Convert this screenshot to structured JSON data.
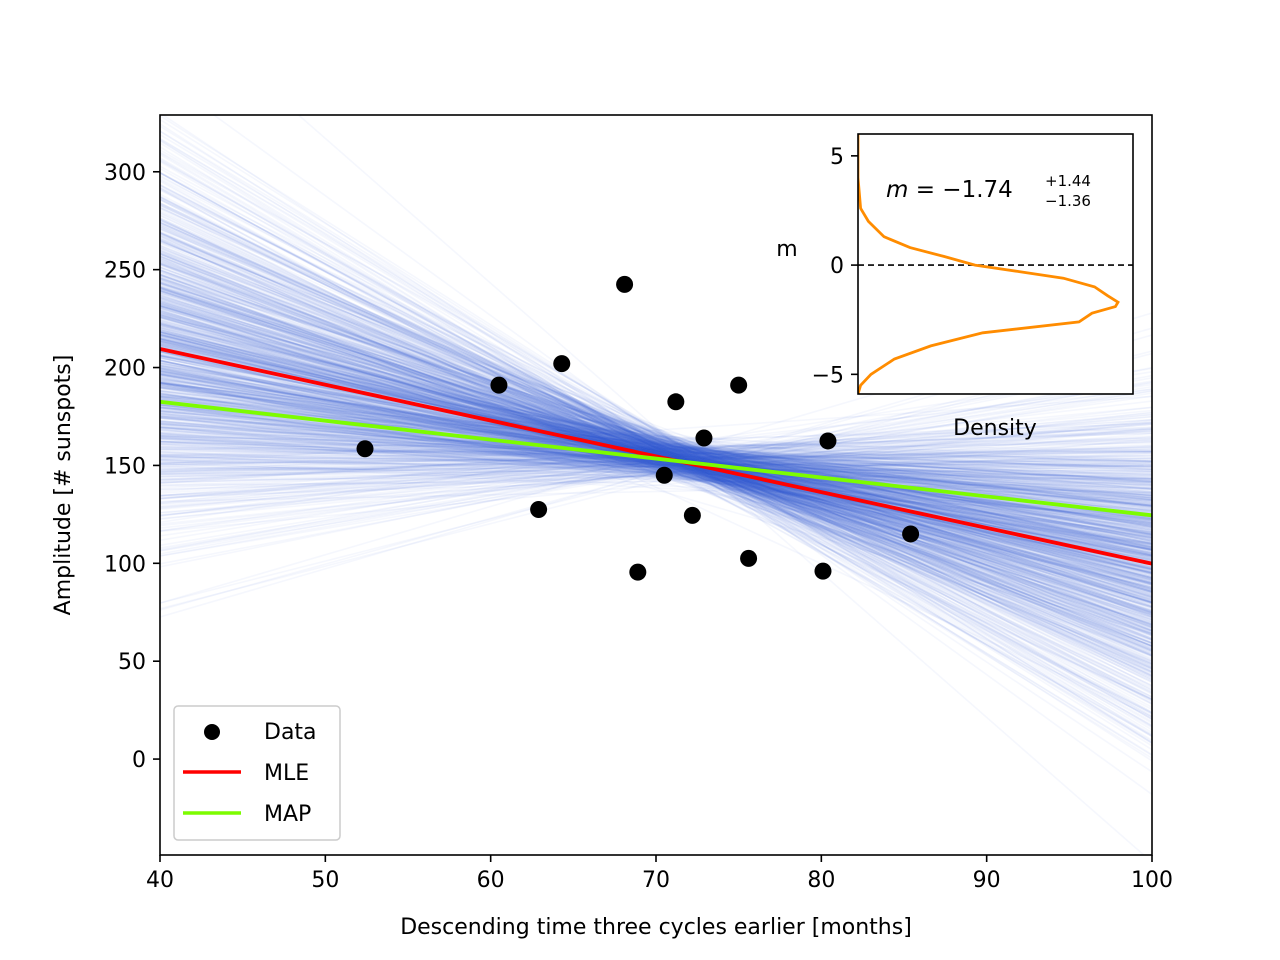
{
  "chart_data": [
    {
      "type": "scatter",
      "title": "",
      "xlabel": "Descending time three cycles earlier [months]",
      "ylabel": "Amplitude [# sunspots]",
      "xlim": [
        40,
        100
      ],
      "ylim": [
        -49,
        329
      ],
      "xticks": [
        40,
        50,
        60,
        70,
        80,
        90,
        100
      ],
      "xtick_labels": [
        "40",
        "50",
        "60",
        "70",
        "80",
        "90",
        "100"
      ],
      "yticks": [
        0,
        50,
        100,
        150,
        200,
        250,
        300
      ],
      "ytick_labels": [
        "0",
        "50",
        "100",
        "150",
        "200",
        "250",
        "300"
      ],
      "grid": false,
      "legend_position": "lower-left",
      "legend": [
        "Data",
        "MLE",
        "MAP"
      ],
      "series": [
        {
          "name": "Data",
          "kind": "scatter",
          "color": "#000000",
          "x": [
            52.4,
            60.5,
            62.9,
            64.3,
            68.1,
            68.9,
            70.5,
            71.2,
            72.2,
            72.9,
            75.0,
            75.6,
            80.1,
            80.4,
            85.4
          ],
          "y": [
            158.5,
            191.0,
            127.5,
            202.0,
            242.5,
            95.5,
            145.0,
            182.5,
            124.5,
            164.0,
            191.0,
            102.5,
            96.0,
            162.5,
            115.0
          ]
        },
        {
          "name": "MLE",
          "kind": "line",
          "color": "#ff0000",
          "x": [
            40,
            100
          ],
          "y": [
            209.5,
            99.8
          ]
        },
        {
          "name": "MAP",
          "kind": "line",
          "color": "#7cfc00",
          "x": [
            40,
            100
          ],
          "y": [
            182.5,
            124.5
          ]
        }
      ],
      "posterior_samples": {
        "color": "#4169e1",
        "count": 1100,
        "pivot_x": 72,
        "pivot_y": 152,
        "slope_mean": -1.74,
        "slope_sd": 1.4,
        "pivot_y_sd": 5
      }
    },
    {
      "type": "line",
      "title": "",
      "annotation": "m = −1.74 +1.44 −1.36",
      "annotation_parts": {
        "lhs": "m",
        "eq": " = −1.74",
        "sup": "+1.44",
        "sub": "−1.36"
      },
      "xlabel": "Density",
      "ylabel": "m",
      "ylim": [
        -5.9,
        6.0
      ],
      "yticks": [
        5,
        0,
        -5
      ],
      "ytick_labels": [
        "5",
        "0",
        "−5"
      ],
      "xticks": [],
      "reference_line": {
        "y": 0,
        "style": "dashed",
        "color": "#000000"
      },
      "series": [
        {
          "name": "",
          "color": "#ff8c00",
          "y": [
            6.0,
            4.0,
            2.6,
            2.0,
            1.3,
            0.8,
            0.4,
            0.0,
            -0.3,
            -0.6,
            -1.0,
            -1.4,
            -1.7,
            -1.9,
            -2.2,
            -2.6,
            -3.1,
            -3.7,
            -4.3,
            -5.0,
            -5.5,
            -5.9
          ],
          "density": [
            0.0,
            0.0,
            0.01,
            0.04,
            0.1,
            0.2,
            0.33,
            0.45,
            0.62,
            0.79,
            0.91,
            0.96,
            1.0,
            0.99,
            0.9,
            0.85,
            0.48,
            0.28,
            0.14,
            0.05,
            0.01,
            0.0
          ]
        }
      ]
    }
  ]
}
